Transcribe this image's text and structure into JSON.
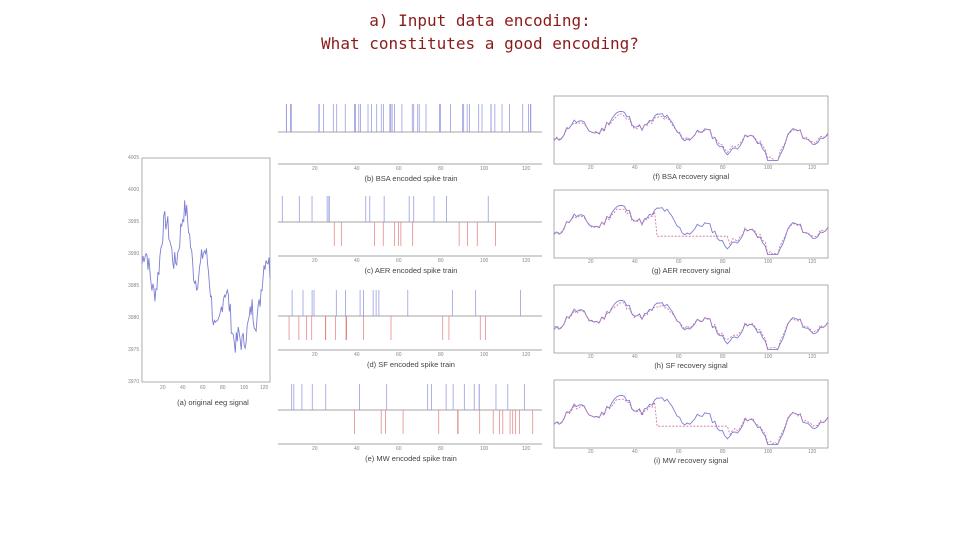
{
  "slide": {
    "title_line1": "a) Input data encoding:",
    "title_line2": "What constitutes a good encoding?"
  },
  "figure": {
    "eeg": {
      "caption": "(a) original eeg signal",
      "y_ticks": [
        "4005",
        "4000",
        "3995",
        "3990",
        "3985",
        "3980",
        "3975",
        "3970"
      ],
      "x_ticks": [
        "20",
        "40",
        "60",
        "80",
        "100",
        "120"
      ]
    },
    "spike_trains": [
      {
        "caption": "(b) BSA encoded spike train"
      },
      {
        "caption": "(c) AER encoded spike train"
      },
      {
        "caption": "(d) SF encoded spike train"
      },
      {
        "caption": "(e) MW encoded spike train"
      }
    ],
    "recovery": [
      {
        "caption": "(f) BSA recovery signal"
      },
      {
        "caption": "(g) AER recovery signal"
      },
      {
        "caption": "(h) SF recovery signal"
      },
      {
        "caption": "(i) MW recovery signal"
      }
    ],
    "small_x_ticks": [
      "20",
      "40",
      "60",
      "80",
      "100",
      "120"
    ],
    "colors": {
      "original": "#7b7fd4",
      "positive_spike": "#8a8fdc",
      "negative_spike": "#e07a7a",
      "recovered": "#d06aa0",
      "axis": "#999999"
    }
  }
}
